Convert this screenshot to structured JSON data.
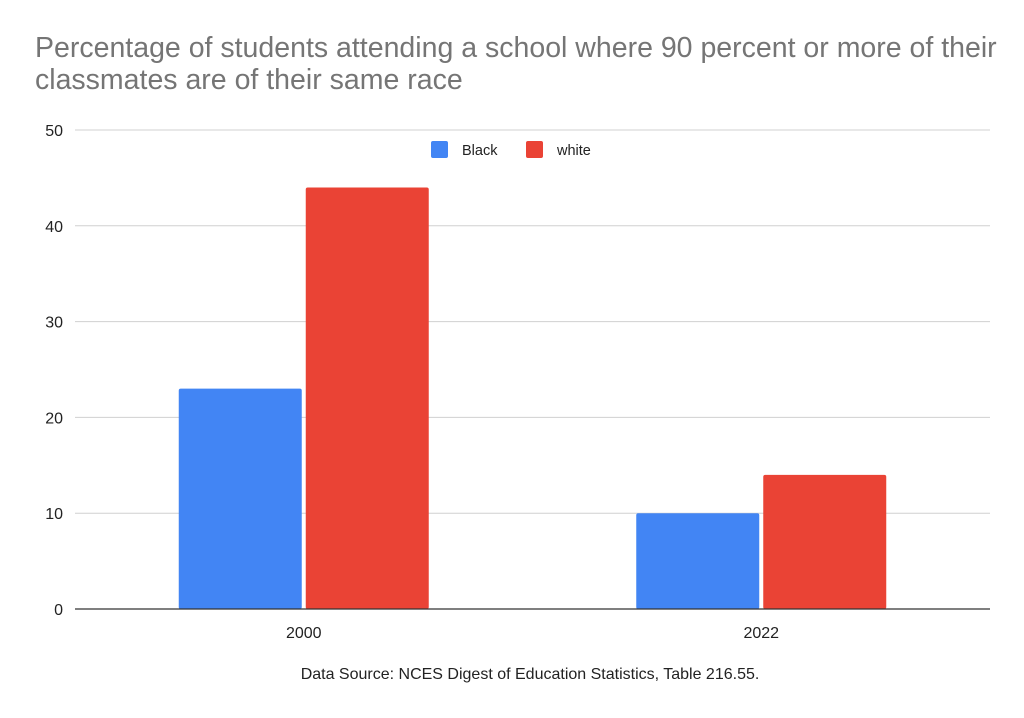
{
  "chart_data": {
    "type": "bar",
    "title": "Percentage of students attending a school where 90 percent or more of their classmates are of their same race",
    "categories": [
      "2000",
      "2022"
    ],
    "series": [
      {
        "name": "Black",
        "values": [
          23,
          10
        ],
        "color": "#4285f4"
      },
      {
        "name": "white",
        "values": [
          44,
          14
        ],
        "color": "#ea4335"
      }
    ],
    "xlabel": "",
    "ylabel": "",
    "ylim": [
      0,
      50
    ],
    "yticks": [
      0,
      10,
      20,
      30,
      40,
      50
    ],
    "grid": true,
    "legend_position": "top-center",
    "source": "Data Source: NCES Digest of Education Statistics, Table 216.55."
  }
}
